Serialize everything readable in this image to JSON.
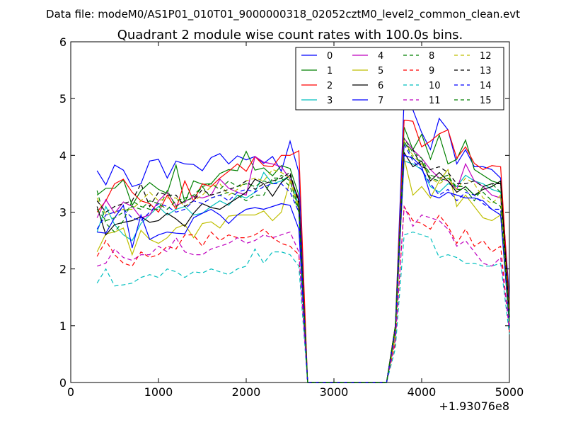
{
  "chart_data": {
    "type": "line",
    "suptitle": "Data file: modeM0/AS1P01_010T01_9000000318_02052cztM0_level2_common_clean.evt",
    "title": "Quadrant 2 module wise count rates with 100.0s bins.",
    "xlabel": "",
    "ylabel": "",
    "x_offset_label": "+1.93076e8",
    "xlim": [
      0,
      5000
    ],
    "ylim": [
      0,
      6
    ],
    "x_ticks": [
      0,
      1000,
      2000,
      3000,
      4000,
      5000
    ],
    "y_ticks": [
      0,
      1,
      2,
      3,
      4,
      5,
      6
    ],
    "x": [
      300,
      400,
      500,
      600,
      700,
      800,
      900,
      1000,
      1100,
      1200,
      1300,
      1400,
      1500,
      1600,
      1700,
      1800,
      1900,
      2000,
      2100,
      2200,
      2300,
      2400,
      2500,
      2600,
      2700,
      2800,
      2900,
      3000,
      3100,
      3200,
      3300,
      3400,
      3500,
      3600,
      3700,
      3800,
      3900,
      4000,
      4100,
      4200,
      4300,
      4400,
      4500,
      4600,
      4700,
      4800,
      4900,
      5000
    ],
    "legend_location": "upper right",
    "legend_columns": 4,
    "series": [
      {
        "name": "0",
        "color": "#0000ff",
        "dash": "solid",
        "values": [
          3.73,
          3.48,
          3.83,
          3.74,
          3.45,
          3.5,
          3.9,
          3.93,
          3.6,
          3.9,
          3.85,
          3.84,
          3.73,
          3.96,
          4.03,
          3.85,
          3.99,
          3.92,
          3.98,
          3.86,
          3.98,
          3.72,
          4.25,
          3.7,
          0,
          0,
          0,
          0,
          0,
          0,
          0,
          0,
          0,
          0,
          1.0,
          5.0,
          4.8,
          4.4,
          4.1,
          4.65,
          4.45,
          3.85,
          4.1,
          3.8,
          3.8,
          3.75,
          3.6,
          1.5
        ]
      },
      {
        "name": "1",
        "color": "#008000",
        "dash": "solid",
        "values": [
          3.3,
          3.42,
          3.42,
          3.57,
          3.12,
          3.38,
          3.52,
          3.4,
          3.33,
          3.83,
          3.17,
          3.55,
          3.49,
          3.5,
          3.68,
          3.75,
          3.73,
          4.07,
          3.74,
          3.78,
          3.64,
          3.82,
          3.77,
          3.3,
          0,
          0,
          0,
          0,
          0,
          0,
          0,
          0,
          0,
          0,
          1.0,
          4.5,
          4.1,
          4.37,
          3.93,
          4.36,
          3.85,
          3.93,
          4.27,
          3.75,
          3.65,
          3.55,
          3.5,
          1.4
        ]
      },
      {
        "name": "2",
        "color": "#ff0000",
        "dash": "solid",
        "values": [
          3.0,
          3.2,
          3.5,
          3.58,
          3.35,
          3.2,
          3.15,
          3.0,
          3.3,
          3.05,
          3.55,
          3.2,
          3.5,
          3.45,
          3.6,
          3.72,
          3.85,
          3.72,
          3.98,
          3.82,
          3.8,
          4.0,
          4.0,
          4.08,
          0,
          0,
          0,
          0,
          0,
          0,
          0,
          0,
          0,
          0,
          1.0,
          4.62,
          4.6,
          4.15,
          4.25,
          4.38,
          4.45,
          3.95,
          4.15,
          3.86,
          3.75,
          3.82,
          3.8,
          1.3
        ]
      },
      {
        "name": "3",
        "color": "#00bfbf",
        "dash": "solid",
        "values": [
          2.65,
          3.1,
          2.78,
          2.6,
          2.5,
          2.8,
          2.95,
          3.1,
          2.95,
          3.05,
          3.1,
          2.95,
          2.98,
          3.1,
          3.2,
          3.12,
          3.3,
          3.25,
          3.35,
          3.7,
          3.5,
          3.55,
          3.65,
          3.1,
          0,
          0,
          0,
          0,
          0,
          0,
          0,
          0,
          0,
          0,
          0.9,
          3.9,
          3.85,
          3.75,
          3.45,
          3.35,
          3.5,
          3.45,
          3.65,
          3.55,
          3.5,
          3.4,
          3.35,
          1.2
        ]
      },
      {
        "name": "4",
        "color": "#bf00bf",
        "dash": "solid",
        "values": [
          2.9,
          3.22,
          2.98,
          3.18,
          3.1,
          2.9,
          2.95,
          3.2,
          3.35,
          3.12,
          3.18,
          3.28,
          3.25,
          3.3,
          3.58,
          3.42,
          3.35,
          3.3,
          3.98,
          3.88,
          3.85,
          3.8,
          3.58,
          3.25,
          0,
          0,
          0,
          0,
          0,
          0,
          0,
          0,
          0,
          0,
          0.9,
          4.3,
          4.1,
          3.95,
          3.75,
          3.6,
          3.55,
          3.4,
          3.85,
          3.55,
          3.45,
          3.3,
          3.25,
          1.1
        ]
      },
      {
        "name": "5",
        "color": "#bfbf00",
        "dash": "solid",
        "values": [
          2.3,
          2.62,
          2.65,
          2.72,
          2.25,
          2.68,
          2.52,
          2.45,
          2.55,
          2.72,
          2.78,
          2.55,
          2.8,
          2.83,
          2.72,
          2.93,
          2.95,
          2.95,
          2.95,
          3.02,
          2.85,
          3.0,
          3.55,
          3.05,
          0,
          0,
          0,
          0,
          0,
          0,
          0,
          0,
          0,
          0,
          0.8,
          3.95,
          3.3,
          3.45,
          3.25,
          3.55,
          3.75,
          3.1,
          3.3,
          3.1,
          2.9,
          2.85,
          2.95,
          1.0
        ]
      },
      {
        "name": "6",
        "color": "#000000",
        "dash": "solid",
        "values": [
          3.1,
          2.6,
          2.78,
          2.82,
          2.85,
          2.92,
          2.82,
          2.85,
          2.98,
          2.88,
          2.75,
          2.98,
          3.15,
          3.08,
          3.05,
          3.15,
          3.25,
          3.35,
          3.58,
          3.5,
          3.28,
          3.52,
          3.65,
          3.2,
          0,
          0,
          0,
          0,
          0,
          0,
          0,
          0,
          0,
          0,
          0.95,
          4.05,
          3.8,
          3.9,
          3.55,
          3.7,
          3.55,
          3.35,
          3.45,
          3.3,
          3.4,
          3.45,
          3.55,
          1.15
        ]
      },
      {
        "name": "7",
        "color": "#0000ff",
        "dash": "solid",
        "values": [
          2.65,
          2.63,
          2.9,
          3.12,
          2.37,
          2.95,
          2.52,
          2.6,
          2.65,
          2.63,
          2.62,
          2.9,
          2.98,
          3.05,
          2.95,
          2.8,
          2.95,
          3.05,
          3.08,
          3.05,
          3.1,
          3.15,
          3.12,
          2.7,
          0,
          0,
          0,
          0,
          0,
          0,
          0,
          0,
          0,
          0,
          0.9,
          4.0,
          3.95,
          3.8,
          3.3,
          3.25,
          3.35,
          3.3,
          3.25,
          3.25,
          3.2,
          3.05,
          2.95,
          1.0
        ]
      },
      {
        "name": "8",
        "color": "#008000",
        "dash": "dashed",
        "values": [
          3.38,
          2.8,
          2.65,
          2.85,
          3.2,
          3.1,
          3.05,
          3.05,
          3.38,
          3.1,
          3.2,
          3.25,
          3.45,
          3.25,
          3.3,
          3.35,
          3.3,
          3.2,
          3.3,
          3.3,
          3.6,
          3.6,
          3.45,
          3.0,
          0,
          0,
          0,
          0,
          0,
          0,
          0,
          0,
          0,
          0,
          1.0,
          4.3,
          4.05,
          3.95,
          3.65,
          3.6,
          3.65,
          3.4,
          3.4,
          3.2,
          3.45,
          3.5,
          3.35,
          1.1
        ]
      },
      {
        "name": "9",
        "color": "#ff0000",
        "dash": "dashed",
        "values": [
          2.22,
          2.5,
          2.25,
          2.1,
          2.05,
          2.3,
          2.2,
          2.25,
          2.4,
          2.35,
          2.6,
          2.6,
          2.4,
          2.65,
          2.5,
          2.6,
          2.55,
          2.55,
          2.6,
          2.7,
          2.55,
          2.45,
          2.4,
          2.25,
          0,
          0,
          0,
          0,
          0,
          0,
          0,
          0,
          0,
          0,
          0.7,
          3.1,
          2.85,
          2.8,
          2.7,
          2.95,
          2.75,
          2.45,
          2.7,
          2.4,
          2.5,
          2.3,
          2.4,
          0.9
        ]
      },
      {
        "name": "10",
        "color": "#00bfbf",
        "dash": "dashed",
        "values": [
          1.75,
          2.0,
          1.7,
          1.72,
          1.75,
          1.85,
          1.9,
          1.85,
          2.0,
          1.95,
          1.85,
          1.95,
          1.93,
          2.0,
          1.95,
          1.9,
          2.0,
          2.05,
          2.35,
          2.1,
          2.3,
          2.3,
          2.25,
          2.05,
          0,
          0,
          0,
          0,
          0,
          0,
          0,
          0,
          0,
          0,
          0.6,
          2.6,
          2.65,
          2.6,
          2.55,
          2.2,
          2.25,
          2.2,
          2.1,
          2.1,
          2.05,
          2.05,
          2.1,
          0.85
        ]
      },
      {
        "name": "11",
        "color": "#bf00bf",
        "dash": "dashed",
        "values": [
          2.05,
          2.1,
          2.35,
          2.2,
          2.15,
          2.25,
          2.25,
          2.4,
          2.3,
          2.55,
          2.3,
          2.25,
          2.25,
          2.35,
          2.4,
          2.45,
          2.55,
          2.45,
          2.5,
          2.6,
          2.55,
          2.6,
          2.65,
          2.3,
          0,
          0,
          0,
          0,
          0,
          0,
          0,
          0,
          0,
          0,
          0.75,
          3.1,
          2.75,
          2.95,
          2.9,
          2.85,
          2.7,
          2.4,
          2.5,
          2.3,
          2.1,
          2.05,
          2.2,
          0.95
        ]
      },
      {
        "name": "12",
        "color": "#bfbf00",
        "dash": "dashed",
        "values": [
          3.25,
          2.95,
          3.0,
          3.05,
          3.05,
          3.2,
          3.35,
          3.2,
          3.25,
          3.25,
          3.1,
          3.2,
          3.3,
          3.45,
          3.5,
          3.3,
          3.4,
          3.55,
          3.6,
          3.55,
          3.75,
          3.7,
          3.6,
          3.1,
          0,
          0,
          0,
          0,
          0,
          0,
          0,
          0,
          0,
          0,
          0.9,
          4.25,
          4.0,
          3.85,
          3.6,
          3.5,
          3.6,
          3.4,
          3.6,
          3.5,
          3.25,
          3.15,
          3.3,
          1.05
        ]
      },
      {
        "name": "13",
        "color": "#000000",
        "dash": "dashed",
        "values": [
          3.2,
          3.0,
          3.1,
          3.15,
          3.2,
          3.5,
          3.1,
          3.35,
          3.3,
          3.3,
          3.1,
          3.2,
          3.4,
          3.3,
          3.35,
          3.4,
          3.45,
          3.55,
          3.4,
          3.5,
          3.55,
          3.6,
          3.7,
          3.15,
          0,
          0,
          0,
          0,
          0,
          0,
          0,
          0,
          0,
          0,
          0.95,
          4.2,
          4.1,
          3.8,
          3.75,
          3.8,
          3.7,
          3.5,
          3.5,
          3.55,
          3.45,
          3.5,
          3.5,
          1.15
        ]
      },
      {
        "name": "14",
        "color": "#0000ff",
        "dash": "dashed",
        "values": [
          2.7,
          2.95,
          3.0,
          3.05,
          2.9,
          2.85,
          3.0,
          3.15,
          3.1,
          3.0,
          3.05,
          3.2,
          3.15,
          3.25,
          3.3,
          3.2,
          3.35,
          3.4,
          3.35,
          3.45,
          3.5,
          3.5,
          3.35,
          3.0,
          0,
          0,
          0,
          0,
          0,
          0,
          0,
          0,
          0,
          0,
          0.95,
          4.2,
          3.9,
          3.75,
          3.5,
          3.3,
          3.4,
          3.2,
          3.35,
          3.3,
          3.15,
          3.05,
          3.05,
          1.0
        ]
      },
      {
        "name": "15",
        "color": "#008000",
        "dash": "dashed",
        "values": [
          3.05,
          2.85,
          2.9,
          3.0,
          3.1,
          3.05,
          3.2,
          3.15,
          3.05,
          3.2,
          3.25,
          3.3,
          3.45,
          3.5,
          3.4,
          3.55,
          3.45,
          3.5,
          3.45,
          3.55,
          3.5,
          3.65,
          3.55,
          3.05,
          0,
          0,
          0,
          0,
          0,
          0,
          0,
          0,
          0,
          0,
          0.95,
          4.25,
          3.95,
          3.9,
          3.6,
          3.55,
          3.6,
          3.45,
          3.45,
          3.3,
          3.35,
          3.2,
          3.1,
          1.05
        ]
      }
    ]
  }
}
